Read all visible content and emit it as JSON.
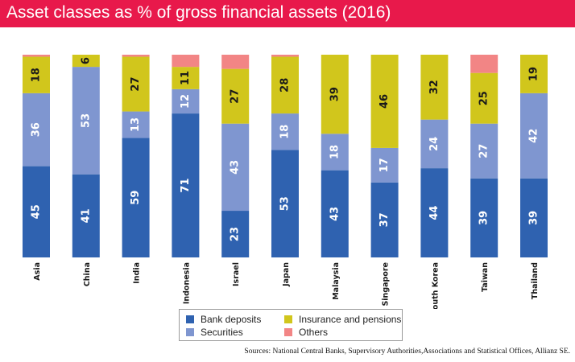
{
  "header": {
    "title": "Asset classes as % of gross financial assets (2016)",
    "background_color": "#e8194b"
  },
  "chart_data": {
    "type": "bar",
    "stacked": true,
    "orientation": "vertical",
    "categories": [
      "Asia",
      "China",
      "India",
      "Indonesia",
      "Israel",
      "Japan",
      "Malaysia",
      "Singapore",
      "South Korea",
      "Taiwan",
      "Thailand"
    ],
    "series": [
      {
        "name": "Bank deposits",
        "color": "#2f62b0",
        "values": [
          45,
          41,
          59,
          71,
          23,
          53,
          43,
          37,
          44,
          39,
          39
        ],
        "labels": [
          "45",
          "41",
          "59",
          "71",
          "23",
          "53",
          "43",
          "37",
          "44",
          "39",
          "39"
        ]
      },
      {
        "name": "Securities",
        "color": "#7f96d0",
        "values": [
          36,
          53,
          13,
          12,
          43,
          18,
          18,
          17,
          24,
          27,
          42
        ],
        "labels": [
          "36",
          "53",
          "13",
          "12",
          "43",
          "18",
          "18",
          "17",
          "24",
          "27",
          "42"
        ]
      },
      {
        "name": "Insurance and pensions",
        "color": "#d1c61c",
        "values": [
          18,
          6,
          27,
          11,
          27,
          28,
          39,
          46,
          32,
          25,
          19
        ],
        "labels": [
          "18",
          "6",
          "27",
          "11",
          "27",
          "28",
          "39",
          "46",
          "32",
          "25",
          "19"
        ]
      },
      {
        "name": "Others",
        "color": "#f28585",
        "values": [
          1,
          0,
          1,
          6,
          7,
          1,
          0,
          0,
          0,
          9,
          0
        ],
        "labels": [
          "",
          "",
          "",
          "",
          "",
          "",
          "",
          "",
          "",
          "",
          ""
        ]
      }
    ],
    "ylim": [
      0,
      100
    ],
    "grid": false,
    "legend_position": "bottom-center",
    "label_color": "#ffffff",
    "inner_label_color": "#1a1a1a"
  },
  "legend": {
    "items": [
      "Bank deposits",
      "Insurance and pensions",
      "Securities",
      "Others"
    ]
  },
  "source": "Sources: National Central Banks, Supervisory Authorities,Associations and Statistical Offices, Allianz SE."
}
